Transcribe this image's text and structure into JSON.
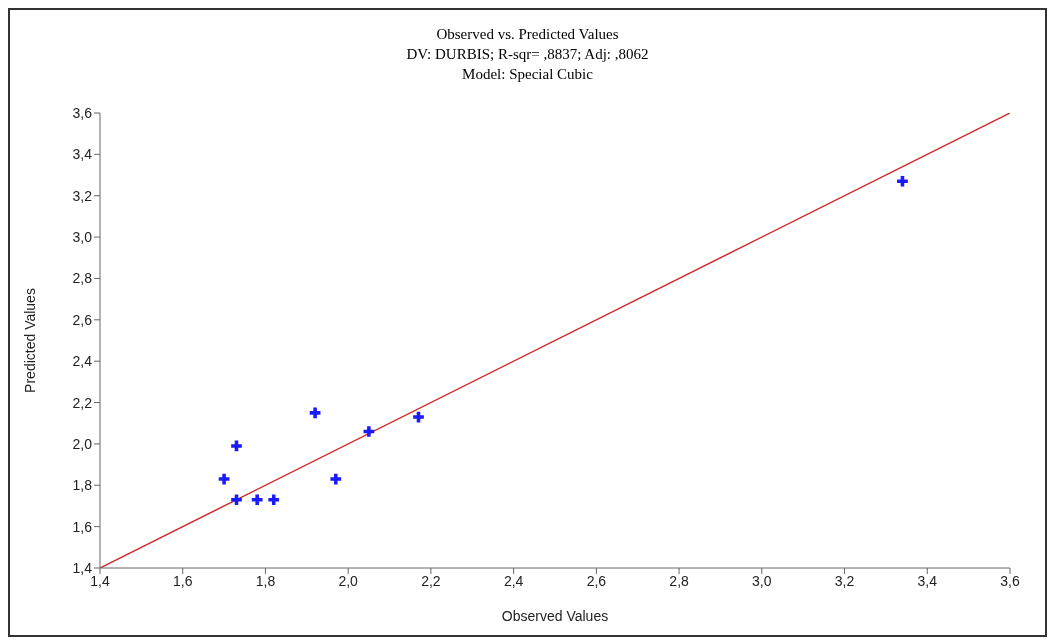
{
  "chart_data": {
    "type": "scatter",
    "title": "Observed vs. Predicted Values",
    "subtitle": "DV: DURBIS; R-sqr= ,8837; Adj: ,8062\nModel: Special Cubic",
    "xlabel": "Observed Values",
    "ylabel": "Predicted Values",
    "series": [
      {
        "color": "#1a1aff",
        "marker": "cross",
        "x": [
          1.7,
          1.73,
          1.73,
          1.78,
          1.82,
          1.92,
          1.97,
          2.05,
          2.17,
          3.34
        ],
        "values": [
          1.83,
          1.99,
          1.73,
          1.73,
          1.73,
          2.15,
          1.83,
          2.06,
          2.13,
          3.27
        ]
      },
      {
        "type": "line",
        "color": "#d42a2a",
        "marker": "none",
        "x": [
          1.4,
          3.6
        ],
        "values": [
          1.4,
          3.6
        ]
      }
    ],
    "xlim": [
      1.4,
      3.6
    ],
    "ylim": [
      1.4,
      3.6
    ],
    "xticks": [
      {
        "value": 1.4,
        "label": "1,4"
      },
      {
        "value": 1.6,
        "label": "1,6"
      },
      {
        "value": 1.8,
        "label": "1,8"
      },
      {
        "value": 2.0,
        "label": "2,0"
      },
      {
        "value": 2.2,
        "label": "2,2"
      },
      {
        "value": 2.4,
        "label": "2,4"
      },
      {
        "value": 2.6,
        "label": "2,6"
      },
      {
        "value": 2.8,
        "label": "2,8"
      },
      {
        "value": 3.0,
        "label": "3,0"
      },
      {
        "value": 3.2,
        "label": "3,2"
      },
      {
        "value": 3.4,
        "label": "3,4"
      },
      {
        "value": 3.6,
        "label": "3,6"
      }
    ],
    "yticks": [
      {
        "value": 1.4,
        "label": "1,4"
      },
      {
        "value": 1.6,
        "label": "1,6"
      },
      {
        "value": 1.8,
        "label": "1,8"
      },
      {
        "value": 2.0,
        "label": "2,0"
      },
      {
        "value": 2.2,
        "label": "2,2"
      },
      {
        "value": 2.4,
        "label": "2,4"
      },
      {
        "value": 2.6,
        "label": "2,6"
      },
      {
        "value": 2.8,
        "label": "2,8"
      },
      {
        "value": 3.0,
        "label": "3,0"
      },
      {
        "value": 3.2,
        "label": "3,2"
      },
      {
        "value": 3.4,
        "label": "3,4"
      },
      {
        "value": 3.6,
        "label": "3,6"
      }
    ],
    "grid": false
  }
}
